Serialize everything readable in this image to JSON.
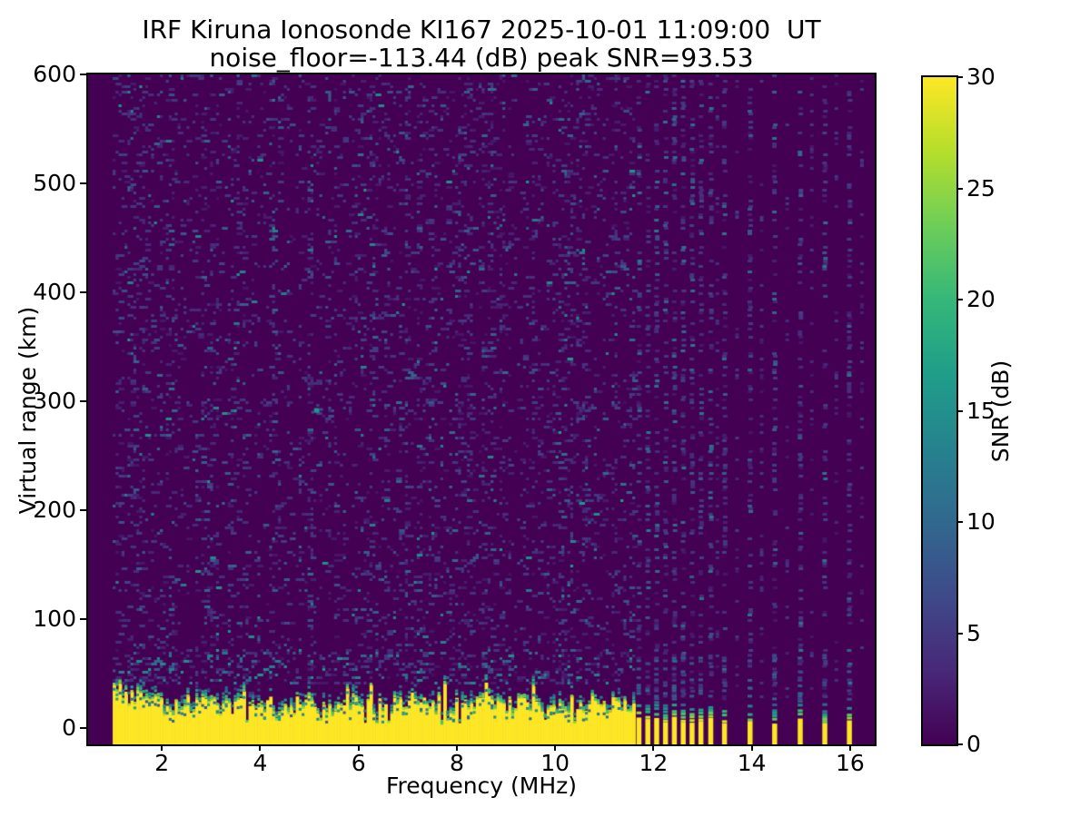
{
  "figure": {
    "kind": "matplotlib-style ionogram figure"
  },
  "chart_data": {
    "type": "heatmap",
    "title": "IRF Kiruna Ionosonde KI167 2025-10-01 11:09:00  UT",
    "subtitle": "noise_floor=-113.44 (dB) peak SNR=93.53",
    "station": "IRF Kiruna Ionosonde KI167",
    "timestamp_ut": "2025-10-01 11:09:00",
    "noise_floor_db": -113.44,
    "peak_snr_db": 93.53,
    "xlabel": "Frequency (MHz)",
    "ylabel": "Virtual range (km)",
    "xlim": [
      0.5,
      16.5
    ],
    "ylim": [
      -15,
      600
    ],
    "xticks": [
      2,
      4,
      6,
      8,
      10,
      12,
      14,
      16
    ],
    "yticks": [
      0,
      100,
      200,
      300,
      400,
      500,
      600
    ],
    "grid": false,
    "colorbar": {
      "label": "SNR (dB)",
      "min": 0,
      "max": 30,
      "ticks": [
        0,
        5,
        10,
        15,
        20,
        25,
        30
      ],
      "colormap": "viridis",
      "colors": [
        "#440154",
        "#482878",
        "#3e4a89",
        "#31688e",
        "#26828e",
        "#1f9e89",
        "#35b779",
        "#6ece58",
        "#b5de2b",
        "#fde725"
      ]
    },
    "content": {
      "background_snr_db": 0,
      "speckle_snr_db_range": [
        2,
        16
      ],
      "data_freq_start_mhz": 1.0,
      "continuous_freq_end_mhz": 11.62,
      "ground_echo": {
        "freq_range_mhz": [
          1.0,
          11.62
        ],
        "typical_top_km": [
          12,
          40
        ],
        "snr_db": 30
      },
      "echo_stripes_mhz": [
        11.7,
        11.88,
        12.06,
        12.24,
        12.42,
        12.6,
        12.78,
        12.96,
        13.16,
        13.44,
        13.96,
        14.46,
        14.98,
        15.48,
        15.98
      ],
      "faint_noise_columns_mhz": [
        13.3,
        13.7,
        14.2,
        14.72,
        15.22,
        15.72,
        16.24
      ],
      "bright_spot": {
        "freq_mhz": 5.15,
        "range_km": 292,
        "snr_db": 16
      },
      "render_seed": 20251001
    }
  }
}
